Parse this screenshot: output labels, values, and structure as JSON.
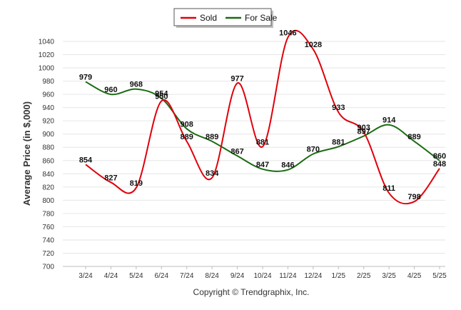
{
  "chart_data": {
    "type": "line",
    "title": "",
    "xlabel": "",
    "ylabel": "Average Price (in $,000)",
    "categories": [
      "3/24",
      "4/24",
      "5/24",
      "6/24",
      "7/24",
      "8/24",
      "9/24",
      "10/24",
      "11/24",
      "12/24",
      "1/25",
      "2/25",
      "3/25",
      "4/25",
      "5/25"
    ],
    "ylim": [
      700,
      1050
    ],
    "yticks": [
      700,
      720,
      740,
      760,
      780,
      800,
      820,
      840,
      860,
      880,
      900,
      920,
      940,
      960,
      980,
      1000,
      1020,
      1040
    ],
    "grid": true,
    "legend_position": "top-center",
    "series": [
      {
        "name": "Sold",
        "color": "#e0000b",
        "values": [
          854,
          827,
          819,
          950,
          889,
          834,
          977,
          881,
          1046,
          1028,
          933,
          903,
          811,
          798,
          848
        ]
      },
      {
        "name": "For Sale",
        "color": "#1a6b12",
        "values": [
          979,
          960,
          968,
          954,
          908,
          889,
          867,
          847,
          846,
          870,
          881,
          897,
          914,
          889,
          860
        ]
      }
    ]
  },
  "footer": {
    "credit": "Copyright © Trendgraphix, Inc."
  }
}
